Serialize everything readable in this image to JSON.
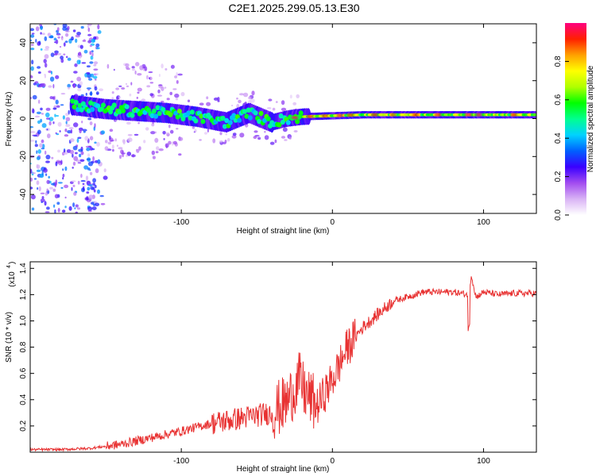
{
  "title": "C2E1.2025.299.05.13.E30",
  "chart_data": [
    {
      "type": "heatmap",
      "title": "C2E1.2025.299.05.13.E30",
      "xlabel": "Height of straight line (km)",
      "ylabel": "Frequency (Hz)",
      "xlim": [
        -200,
        135
      ],
      "ylim": [
        -50,
        50
      ],
      "xticks": [
        -100,
        0,
        100
      ],
      "xtick_labels": [
        "-100",
        "0",
        "100"
      ],
      "yticks": [
        -40,
        -20,
        0,
        20,
        40
      ],
      "ytick_labels": [
        "-40",
        "-20",
        "0",
        "20",
        "40"
      ],
      "ridge": {
        "x": [
          -170,
          -150,
          -130,
          -110,
          -90,
          -70,
          -55,
          -40,
          -30,
          -20,
          0,
          20,
          40,
          60,
          80,
          100,
          135
        ],
        "y": [
          7,
          5,
          4,
          3,
          1,
          -2,
          3,
          -2,
          0,
          1,
          1.5,
          2,
          2,
          2,
          2,
          2,
          2
        ]
      },
      "colorbar": {
        "label": "Normalized spectral amplitude",
        "range": [
          0,
          1
        ],
        "ticks": [
          0.0,
          0.2,
          0.4,
          0.6,
          0.8
        ],
        "tick_labels": [
          "0.0",
          "0.2",
          "0.4",
          "0.6",
          "0.8"
        ],
        "colors": [
          "#ffffff",
          "#d9b3f5",
          "#a24cf0",
          "#3a00ff",
          "#0060ff",
          "#00d2ff",
          "#00ff90",
          "#00ff00",
          "#b0ff00",
          "#ffff00",
          "#ffa000",
          "#ff2000",
          "#ff0080"
        ]
      },
      "grid": false
    },
    {
      "type": "line",
      "xlabel": "Height of straight line (km)",
      "ylabel": "SNR (10 * v/v)",
      "y_multiplier": "(x10",
      "y_exponent": "4",
      "xlim": [
        -200,
        135
      ],
      "ylim": [
        0,
        1.45
      ],
      "xticks": [
        -100,
        0,
        100
      ],
      "xtick_labels": [
        "-100",
        "0",
        "100"
      ],
      "yticks": [
        0.2,
        0.4,
        0.6,
        0.8,
        1.0,
        1.2,
        1.4
      ],
      "ytick_labels": [
        "0.2",
        "0.4",
        "0.6",
        "0.8",
        "1.0",
        "1.2",
        "1.4"
      ],
      "series": [
        {
          "name": "SNR",
          "color": "#e83232",
          "x": [
            -200,
            -180,
            -160,
            -140,
            -120,
            -100,
            -80,
            -60,
            -50,
            -40,
            -30,
            -22,
            -18,
            -10,
            0,
            10,
            20,
            25,
            40,
            60,
            80,
            90,
            92,
            95,
            100,
            110,
            120,
            135
          ],
          "y": [
            0.02,
            0.02,
            0.03,
            0.06,
            0.11,
            0.16,
            0.22,
            0.26,
            0.28,
            0.3,
            0.38,
            0.55,
            0.45,
            0.35,
            0.55,
            0.8,
            0.95,
            1.0,
            1.15,
            1.22,
            1.22,
            1.2,
            1.35,
            1.18,
            1.22,
            1.2,
            1.21,
            1.21
          ]
        }
      ],
      "grid": false
    }
  ]
}
